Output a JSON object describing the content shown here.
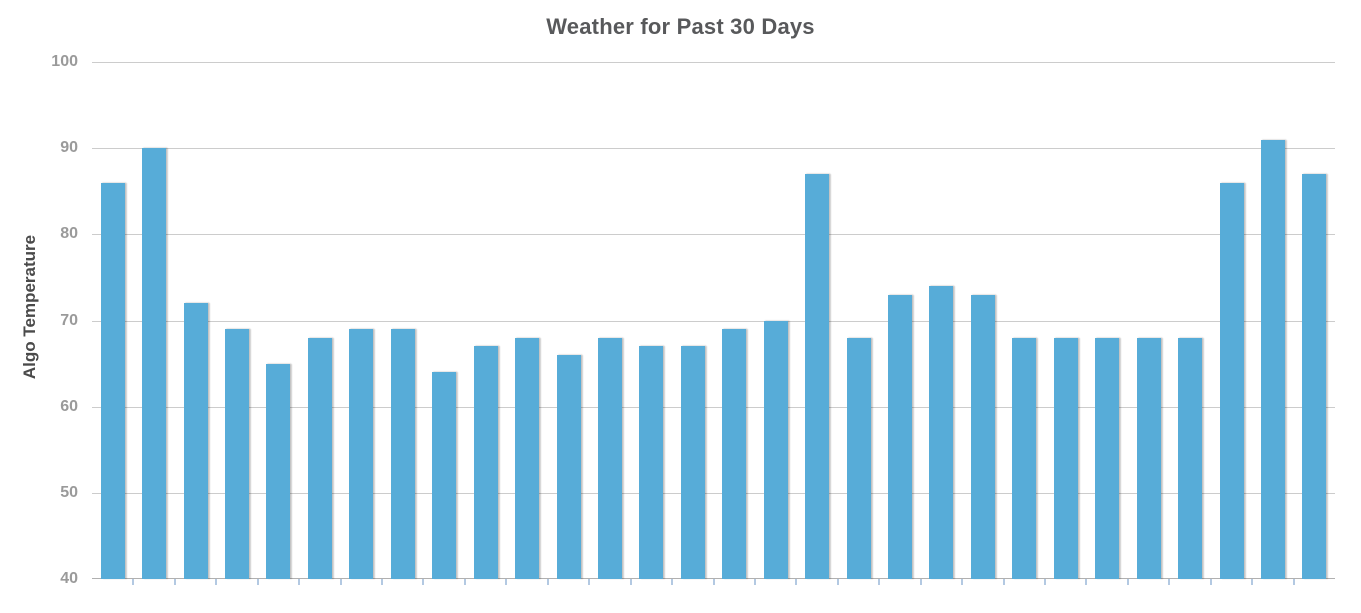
{
  "colors": {
    "background": "#ffffff",
    "bar": "#57acd8",
    "gridline": "#cccccc",
    "baseline": "#b0b0b0",
    "axis_tick": "#b3c9e2",
    "title_text": "#58595b",
    "yaxis_title_text": "#4a4a4a",
    "ytick_label_text": "#9a9a9a"
  },
  "chart_data": {
    "type": "bar",
    "title": "Weather for Past 30 Days",
    "xlabel": "",
    "ylabel": "Algo Temperature",
    "ylim": [
      40,
      100
    ],
    "yticks": [
      40,
      50,
      60,
      70,
      80,
      90,
      100
    ],
    "x_tick_labels": [],
    "grid": true,
    "legend": false,
    "series": [
      {
        "name": "Algo Temperature",
        "values": [
          86,
          90,
          72,
          69,
          65,
          68,
          69,
          69,
          64,
          67,
          68,
          66,
          68,
          67,
          67,
          69,
          70,
          87,
          68,
          73,
          74,
          73,
          68,
          68,
          68,
          68,
          68,
          86,
          91,
          87
        ]
      }
    ]
  }
}
